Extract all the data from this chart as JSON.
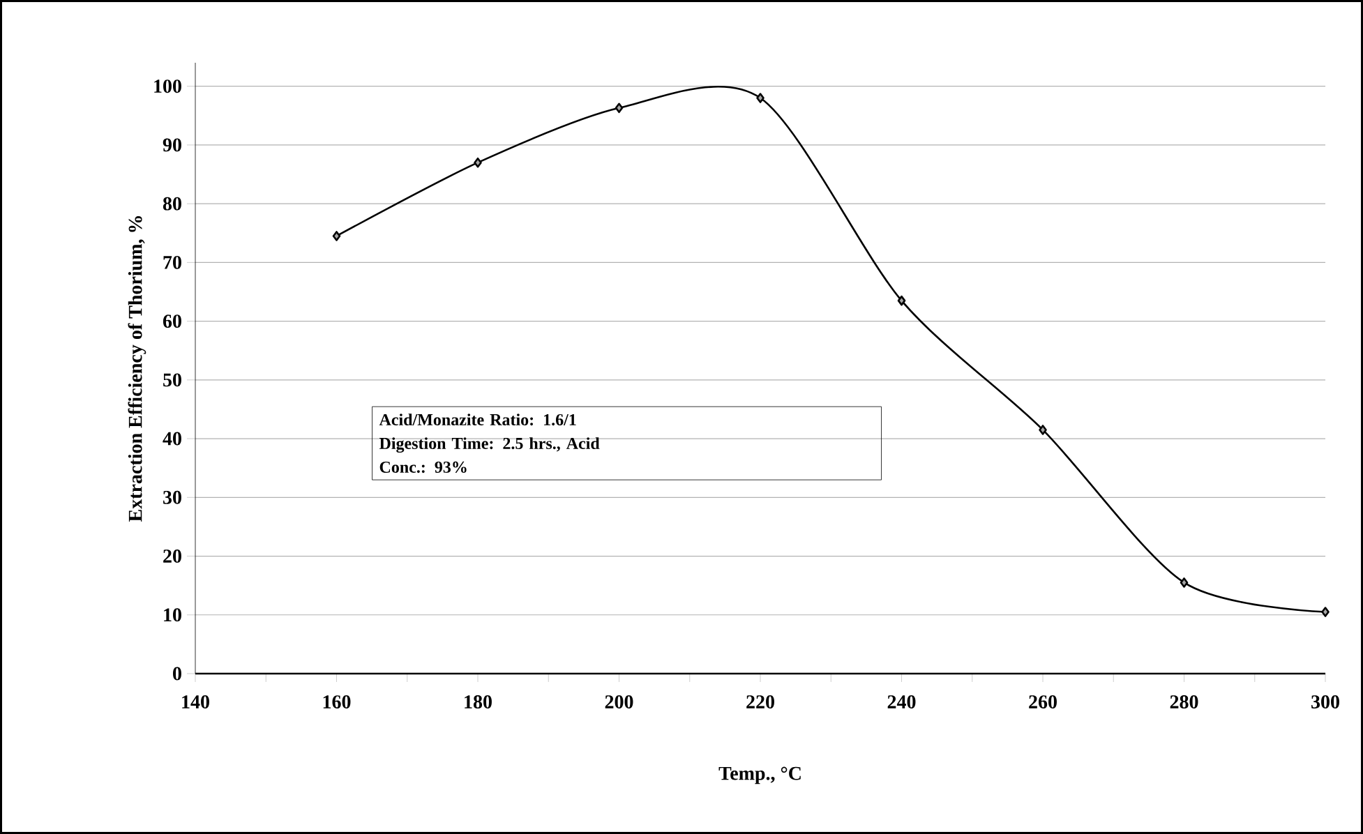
{
  "chart_data": {
    "type": "line",
    "xlabel": "Temp., °C",
    "ylabel": "Extraction Efficiency of Thorium, %",
    "x": [
      160,
      180,
      200,
      220,
      240,
      260,
      280,
      300
    ],
    "series": [
      {
        "color": "#000000",
        "values": [
          74.5,
          87,
          96.3,
          98,
          63.5,
          41.5,
          15.5,
          10.5
        ]
      }
    ],
    "xlim": [
      140,
      300
    ],
    "xticks": [
      140,
      160,
      180,
      200,
      220,
      240,
      260,
      280,
      300
    ],
    "ylim": [
      0,
      104
    ],
    "yticks": [
      0,
      10,
      20,
      30,
      40,
      50,
      60,
      70,
      80,
      90,
      100
    ],
    "grid": "y",
    "marker": "diamond",
    "line_style": "solid",
    "annotations": [
      "Acid/Monazite Ratio: 1.6/1",
      "Digestion Time: 2.5 hrs., Acid",
      "Conc.: 93%"
    ]
  }
}
